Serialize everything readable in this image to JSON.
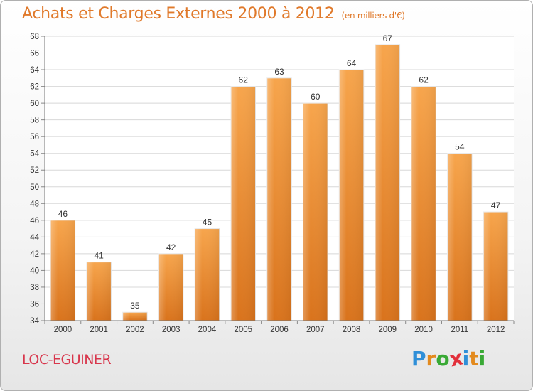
{
  "title": "Achats et Charges Externes 2000 à 2012",
  "unit": "(en milliers d'€)",
  "commune": "LOC-EGUINER",
  "brand": {
    "letters": [
      "P",
      "r",
      "o",
      "x",
      "i",
      "t",
      "i"
    ],
    "colors": [
      "#2f8fd8",
      "#e38a1e",
      "#39a935",
      "#e2303b",
      "#2f8fd8",
      "#e38a1e",
      "#39a935"
    ]
  },
  "colors": {
    "bar_top": "#f7a54c",
    "bar_bottom": "#d9731c",
    "title": "#e0792a",
    "commune": "#d8364c"
  },
  "chart_data": {
    "type": "bar",
    "categories": [
      "2000",
      "2001",
      "2002",
      "2003",
      "2004",
      "2005",
      "2006",
      "2007",
      "2008",
      "2009",
      "2010",
      "2011",
      "2012"
    ],
    "values": [
      46,
      41,
      35,
      42,
      45,
      62,
      63,
      60,
      64,
      67,
      62,
      54,
      47
    ],
    "ylim": [
      34,
      68
    ],
    "yticks": [
      34,
      36,
      38,
      40,
      42,
      44,
      46,
      48,
      50,
      52,
      54,
      56,
      58,
      60,
      62,
      64,
      66,
      68
    ],
    "grid": true,
    "title": "Achats et Charges Externes 2000 à 2012",
    "xlabel": "",
    "ylabel": ""
  }
}
